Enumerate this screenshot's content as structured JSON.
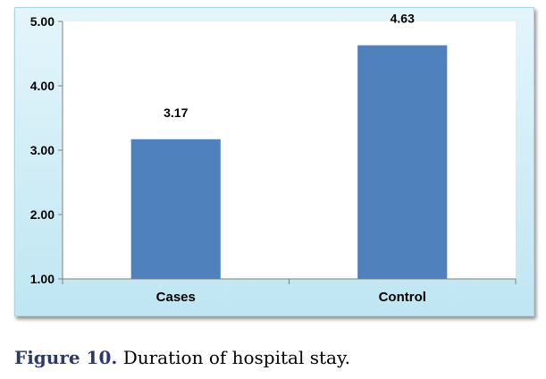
{
  "chart_data": {
    "type": "bar",
    "categories": [
      "Cases",
      "Control"
    ],
    "values": [
      3.17,
      4.63
    ],
    "data_labels": [
      "3.17",
      "4.63"
    ],
    "ylim": [
      1.0,
      5.0
    ],
    "yticks": [
      "1.00",
      "2.00",
      "3.00",
      "4.00",
      "5.00"
    ],
    "ytick_values": [
      1,
      2,
      3,
      4,
      5
    ],
    "grid": false,
    "bar_color": "#4f81bd",
    "xlabel": "",
    "ylabel": ""
  },
  "caption": {
    "label": "Figure 10.",
    "text": " Duration of hospital stay."
  }
}
